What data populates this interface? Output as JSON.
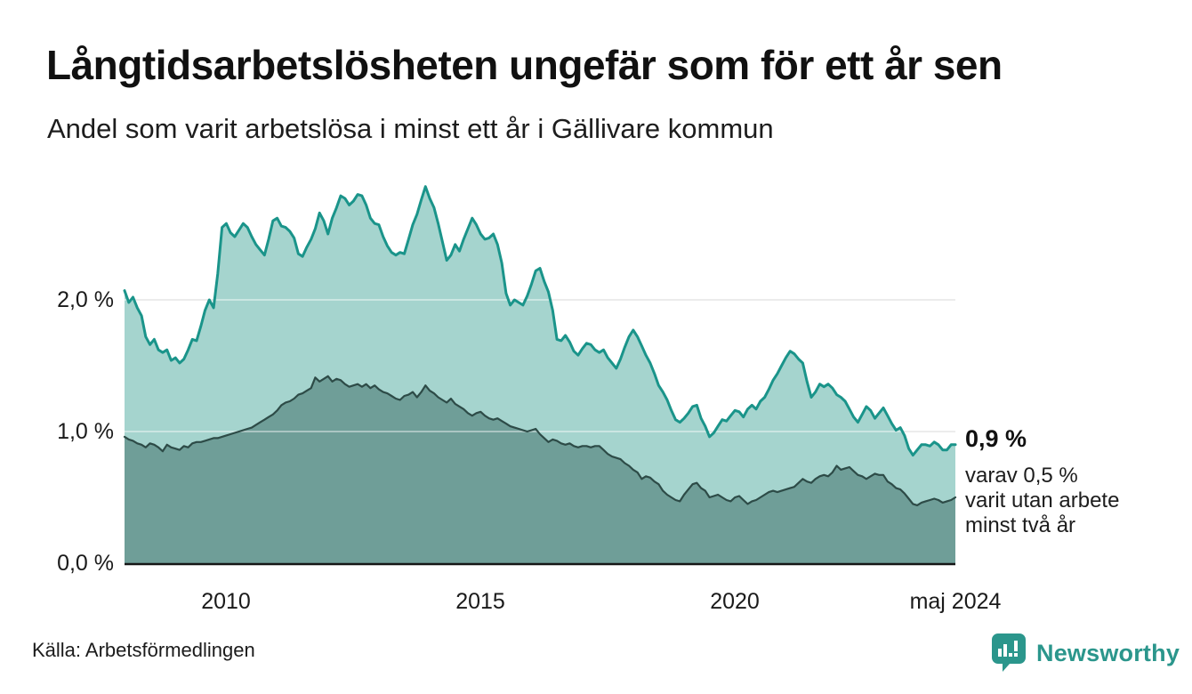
{
  "header": {
    "title": "Långtidsarbetslösheten ungefär som för ett år sen",
    "subtitle": "Andel som varit arbetslösa i minst ett år i Gällivare kommun"
  },
  "annotation": {
    "value": "0,9 %",
    "lines": [
      "varav 0,5 %",
      "varit utan arbete",
      "minst två år"
    ]
  },
  "footer": {
    "source": "Källa: Arbetsförmedlingen",
    "brand": "Newsworthy"
  },
  "colors": {
    "line_total": "#1a948a",
    "fill_total": "#a5d4ce",
    "line_two_years": "#2d4b47",
    "fill_two_years": "#6f9e98",
    "gridline": "#dedede",
    "axis": "#161616",
    "brand_teal": "#2b968c"
  },
  "chart_data": {
    "type": "area",
    "title": "Långtidsarbetslösheten ungefär som för ett år sen",
    "subtitle": "Andel som varit arbetslösa i minst ett år i Gällivare kommun",
    "unit": "percent",
    "frequency": "monthly",
    "x_start": "2008-01",
    "x_end": "2024-05",
    "x_range": [
      2008.0,
      2024.4167
    ],
    "ylim": [
      0,
      3.0
    ],
    "grid": "horizontal",
    "y_ticks": [
      {
        "label": "2,0 %",
        "value": 2.0
      },
      {
        "label": "1,0 %",
        "value": 1.0
      },
      {
        "label": "0,0 %",
        "value": 0.0
      }
    ],
    "x_ticks": [
      {
        "label": "2010",
        "year": 2010.0
      },
      {
        "label": "2015",
        "year": 2015.0
      },
      {
        "label": "2020",
        "year": 2020.0
      },
      {
        "label": "maj 2024",
        "year": 2024.3333
      }
    ],
    "end_labels": {
      "total": "0,9 %",
      "two_years": "varav 0,5 % varit utan arbete minst två år"
    },
    "series": [
      {
        "name": "Andel arbetslösa minst ett år",
        "color": "#1a948a",
        "fill": "#a5d4ce",
        "stroke_width": 3,
        "values": [
          2.07,
          1.98,
          2.02,
          1.94,
          1.88,
          1.72,
          1.66,
          1.7,
          1.62,
          1.6,
          1.62,
          1.54,
          1.56,
          1.52,
          1.55,
          1.62,
          1.7,
          1.69,
          1.8,
          1.92,
          2.0,
          1.94,
          2.2,
          2.55,
          2.58,
          2.51,
          2.48,
          2.53,
          2.58,
          2.55,
          2.48,
          2.42,
          2.38,
          2.34,
          2.46,
          2.6,
          2.62,
          2.56,
          2.55,
          2.52,
          2.47,
          2.35,
          2.33,
          2.4,
          2.46,
          2.54,
          2.66,
          2.6,
          2.5,
          2.62,
          2.7,
          2.79,
          2.77,
          2.72,
          2.75,
          2.8,
          2.79,
          2.72,
          2.62,
          2.58,
          2.57,
          2.48,
          2.41,
          2.36,
          2.34,
          2.36,
          2.35,
          2.46,
          2.57,
          2.65,
          2.76,
          2.86,
          2.77,
          2.7,
          2.58,
          2.44,
          2.3,
          2.34,
          2.42,
          2.37,
          2.46,
          2.54,
          2.62,
          2.57,
          2.5,
          2.46,
          2.47,
          2.5,
          2.42,
          2.28,
          2.05,
          1.96,
          2.0,
          1.98,
          1.96,
          2.03,
          2.12,
          2.22,
          2.24,
          2.14,
          2.06,
          1.92,
          1.7,
          1.69,
          1.73,
          1.68,
          1.61,
          1.58,
          1.63,
          1.67,
          1.66,
          1.62,
          1.6,
          1.62,
          1.56,
          1.52,
          1.48,
          1.55,
          1.64,
          1.72,
          1.77,
          1.72,
          1.65,
          1.58,
          1.52,
          1.44,
          1.35,
          1.3,
          1.24,
          1.16,
          1.09,
          1.07,
          1.1,
          1.14,
          1.19,
          1.2,
          1.1,
          1.04,
          0.96,
          0.99,
          1.04,
          1.09,
          1.08,
          1.12,
          1.16,
          1.15,
          1.11,
          1.17,
          1.2,
          1.17,
          1.23,
          1.26,
          1.32,
          1.39,
          1.44,
          1.5,
          1.56,
          1.61,
          1.59,
          1.55,
          1.52,
          1.38,
          1.26,
          1.3,
          1.36,
          1.34,
          1.36,
          1.33,
          1.28,
          1.26,
          1.23,
          1.17,
          1.11,
          1.07,
          1.13,
          1.19,
          1.16,
          1.1,
          1.14,
          1.18,
          1.12,
          1.06,
          1.01,
          1.03,
          0.97,
          0.87,
          0.82,
          0.86,
          0.9,
          0.9,
          0.89,
          0.92,
          0.9,
          0.86,
          0.86,
          0.9,
          0.9
        ]
      },
      {
        "name": "Andel arbetslösa minst två år",
        "color": "#2d4b47",
        "fill": "#6f9e98",
        "stroke_width": 2.2,
        "values": [
          0.96,
          0.94,
          0.93,
          0.91,
          0.9,
          0.88,
          0.91,
          0.9,
          0.88,
          0.85,
          0.9,
          0.88,
          0.87,
          0.86,
          0.89,
          0.88,
          0.91,
          0.92,
          0.92,
          0.93,
          0.94,
          0.95,
          0.95,
          0.96,
          0.97,
          0.98,
          0.99,
          1.0,
          1.01,
          1.02,
          1.03,
          1.05,
          1.07,
          1.09,
          1.11,
          1.13,
          1.16,
          1.2,
          1.22,
          1.23,
          1.25,
          1.28,
          1.29,
          1.31,
          1.33,
          1.41,
          1.38,
          1.4,
          1.42,
          1.38,
          1.4,
          1.39,
          1.36,
          1.34,
          1.35,
          1.36,
          1.34,
          1.36,
          1.33,
          1.35,
          1.32,
          1.3,
          1.29,
          1.27,
          1.25,
          1.24,
          1.27,
          1.28,
          1.3,
          1.26,
          1.3,
          1.35,
          1.31,
          1.29,
          1.26,
          1.24,
          1.22,
          1.25,
          1.21,
          1.19,
          1.17,
          1.14,
          1.12,
          1.14,
          1.15,
          1.12,
          1.1,
          1.09,
          1.1,
          1.08,
          1.06,
          1.04,
          1.03,
          1.02,
          1.01,
          1.0,
          1.01,
          1.02,
          0.98,
          0.95,
          0.92,
          0.94,
          0.93,
          0.91,
          0.9,
          0.91,
          0.89,
          0.88,
          0.89,
          0.89,
          0.88,
          0.89,
          0.89,
          0.86,
          0.83,
          0.81,
          0.8,
          0.79,
          0.76,
          0.74,
          0.71,
          0.69,
          0.64,
          0.66,
          0.65,
          0.62,
          0.6,
          0.55,
          0.52,
          0.5,
          0.48,
          0.47,
          0.52,
          0.56,
          0.6,
          0.61,
          0.57,
          0.55,
          0.5,
          0.51,
          0.52,
          0.5,
          0.48,
          0.47,
          0.5,
          0.51,
          0.48,
          0.45,
          0.47,
          0.48,
          0.5,
          0.52,
          0.54,
          0.55,
          0.54,
          0.55,
          0.56,
          0.57,
          0.58,
          0.61,
          0.64,
          0.62,
          0.61,
          0.64,
          0.66,
          0.67,
          0.66,
          0.69,
          0.74,
          0.71,
          0.72,
          0.73,
          0.7,
          0.67,
          0.66,
          0.64,
          0.66,
          0.68,
          0.67,
          0.67,
          0.62,
          0.6,
          0.57,
          0.56,
          0.53,
          0.49,
          0.45,
          0.44,
          0.46,
          0.47,
          0.48,
          0.49,
          0.48,
          0.46,
          0.47,
          0.48,
          0.5
        ]
      }
    ]
  }
}
